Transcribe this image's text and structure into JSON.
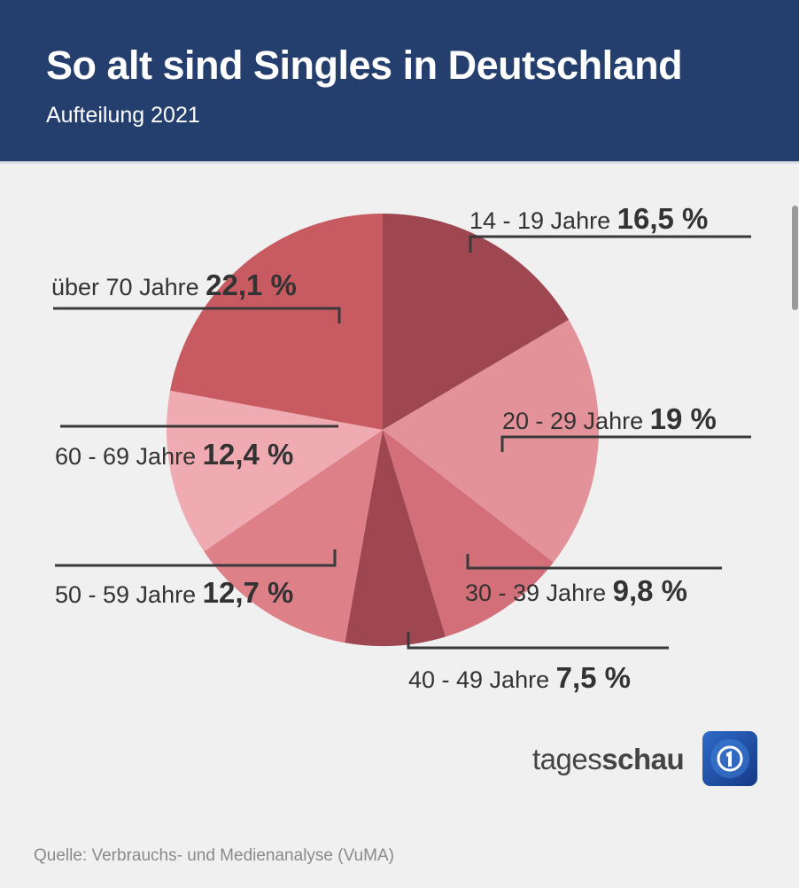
{
  "header": {
    "title": "So alt sind Singles in Deutschland",
    "subtitle": "Aufteilung 2021"
  },
  "chart_data": {
    "type": "pie",
    "title": "So alt sind Singles in Deutschland",
    "subtitle": "Aufteilung 2021",
    "unit": "%",
    "start": "top, clockwise",
    "slices": [
      {
        "label": "14 - 19 Jahre",
        "value": 16.5,
        "display": "16,5 %",
        "color": "#9e4750"
      },
      {
        "label": "20 - 29 Jahre",
        "value": 19.0,
        "display": "19 %",
        "color": "#e39299"
      },
      {
        "label": "30 - 39 Jahre",
        "value": 9.8,
        "display": "9,8 %",
        "color": "#d36f78"
      },
      {
        "label": "40 - 49 Jahre",
        "value": 7.5,
        "display": "7,5 %",
        "color": "#9e4750"
      },
      {
        "label": "50 - 59 Jahre",
        "value": 12.7,
        "display": "12,7 %",
        "color": "#dd8087"
      },
      {
        "label": "60 - 69 Jahre",
        "value": 12.4,
        "display": "12,4 %",
        "color": "#efabb1"
      },
      {
        "label": "über 70 Jahre",
        "value": 22.1,
        "display": "22,1 %",
        "color": "#c85b62"
      }
    ]
  },
  "brand": {
    "light": "tages",
    "bold": "schau",
    "logo_icon": "tagesschau-globe-1-icon"
  },
  "source": "Quelle: Verbrauchs- und Medienanalyse (VuMA)"
}
